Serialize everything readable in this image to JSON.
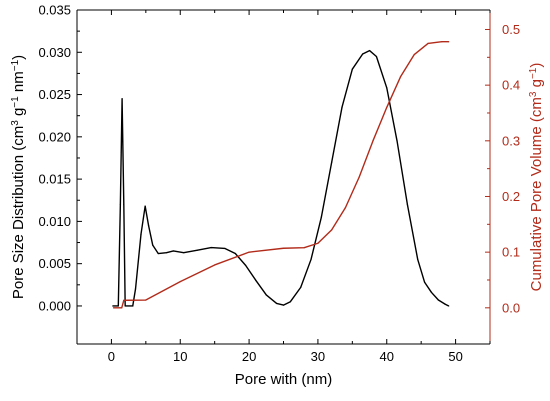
{
  "chart_data": {
    "type": "line",
    "title": "",
    "xlabel": "Pore with (nm)",
    "ylabel_left": {
      "main": "Pore Size Distribution (cm",
      "sup1": "3",
      "mid1": " g",
      "sup2": "−1",
      "mid2": " nm",
      "sup3": "−1",
      "end": ")"
    },
    "ylabel_right": {
      "main": "Cumulative Pore Volume (cm",
      "sup1": "3",
      "mid1": " g",
      "sup2": "−1",
      "end": ")"
    },
    "xlim": [
      -5,
      55
    ],
    "ylim_left": [
      -0.0045,
      0.035
    ],
    "ylim_right": [
      -0.065,
      0.535
    ],
    "x_ticks": [
      0,
      10,
      20,
      30,
      40,
      50
    ],
    "y_left_ticks": [
      "0.000",
      "0.005",
      "0.010",
      "0.015",
      "0.020",
      "0.025",
      "0.030",
      "0.035"
    ],
    "y_right_ticks": [
      "0.0",
      "0.1",
      "0.2",
      "0.3",
      "0.4",
      "0.5"
    ],
    "grid": false,
    "legend": "none",
    "colors": {
      "left_axis": "#000000",
      "right_axis": "#b22b1a",
      "left_series": "#000000",
      "right_series": "#b22b1a"
    },
    "series": [
      {
        "axis": "left",
        "points": [
          [
            0.2,
            0.0
          ],
          [
            1.0,
            0.0
          ],
          [
            1.3,
            0.012
          ],
          [
            1.55,
            0.0245
          ],
          [
            1.8,
            0.012
          ],
          [
            2.0,
            0.0
          ],
          [
            3.1,
            0.0
          ],
          [
            3.5,
            0.002
          ],
          [
            4.3,
            0.0085
          ],
          [
            4.9,
            0.0118
          ],
          [
            5.4,
            0.0095
          ],
          [
            6.0,
            0.0072
          ],
          [
            6.8,
            0.0062
          ],
          [
            8.0,
            0.0063
          ],
          [
            9.0,
            0.0065
          ],
          [
            10.5,
            0.0063
          ],
          [
            12.5,
            0.0066
          ],
          [
            14.5,
            0.0069
          ],
          [
            16.5,
            0.0068
          ],
          [
            18.0,
            0.0062
          ],
          [
            19.5,
            0.0048
          ],
          [
            21.0,
            0.003
          ],
          [
            22.5,
            0.0013
          ],
          [
            24.0,
            0.0003
          ],
          [
            25.0,
            0.0001
          ],
          [
            26.0,
            0.0005
          ],
          [
            27.5,
            0.0022
          ],
          [
            29.0,
            0.0055
          ],
          [
            30.5,
            0.0105
          ],
          [
            32.0,
            0.017
          ],
          [
            33.5,
            0.0235
          ],
          [
            35.0,
            0.028
          ],
          [
            36.5,
            0.0298
          ],
          [
            37.5,
            0.0302
          ],
          [
            38.5,
            0.0295
          ],
          [
            40.0,
            0.0258
          ],
          [
            41.5,
            0.0195
          ],
          [
            43.0,
            0.012
          ],
          [
            44.5,
            0.0055
          ],
          [
            45.5,
            0.0028
          ],
          [
            46.5,
            0.0016
          ],
          [
            47.5,
            0.0007
          ],
          [
            48.5,
            0.0002
          ],
          [
            49.0,
            0.0
          ]
        ]
      },
      {
        "axis": "right",
        "points": [
          [
            0.3,
            0.0
          ],
          [
            1.5,
            0.0
          ],
          [
            1.8,
            0.0135
          ],
          [
            5.0,
            0.014
          ],
          [
            10.0,
            0.047
          ],
          [
            15.0,
            0.077
          ],
          [
            20.0,
            0.1
          ],
          [
            25.0,
            0.107
          ],
          [
            28.0,
            0.108
          ],
          [
            30.0,
            0.116
          ],
          [
            32.0,
            0.14
          ],
          [
            34.0,
            0.18
          ],
          [
            36.0,
            0.235
          ],
          [
            38.0,
            0.3
          ],
          [
            40.0,
            0.36
          ],
          [
            42.0,
            0.415
          ],
          [
            44.0,
            0.455
          ],
          [
            46.0,
            0.475
          ],
          [
            48.0,
            0.478
          ],
          [
            49.0,
            0.478
          ]
        ]
      }
    ]
  }
}
